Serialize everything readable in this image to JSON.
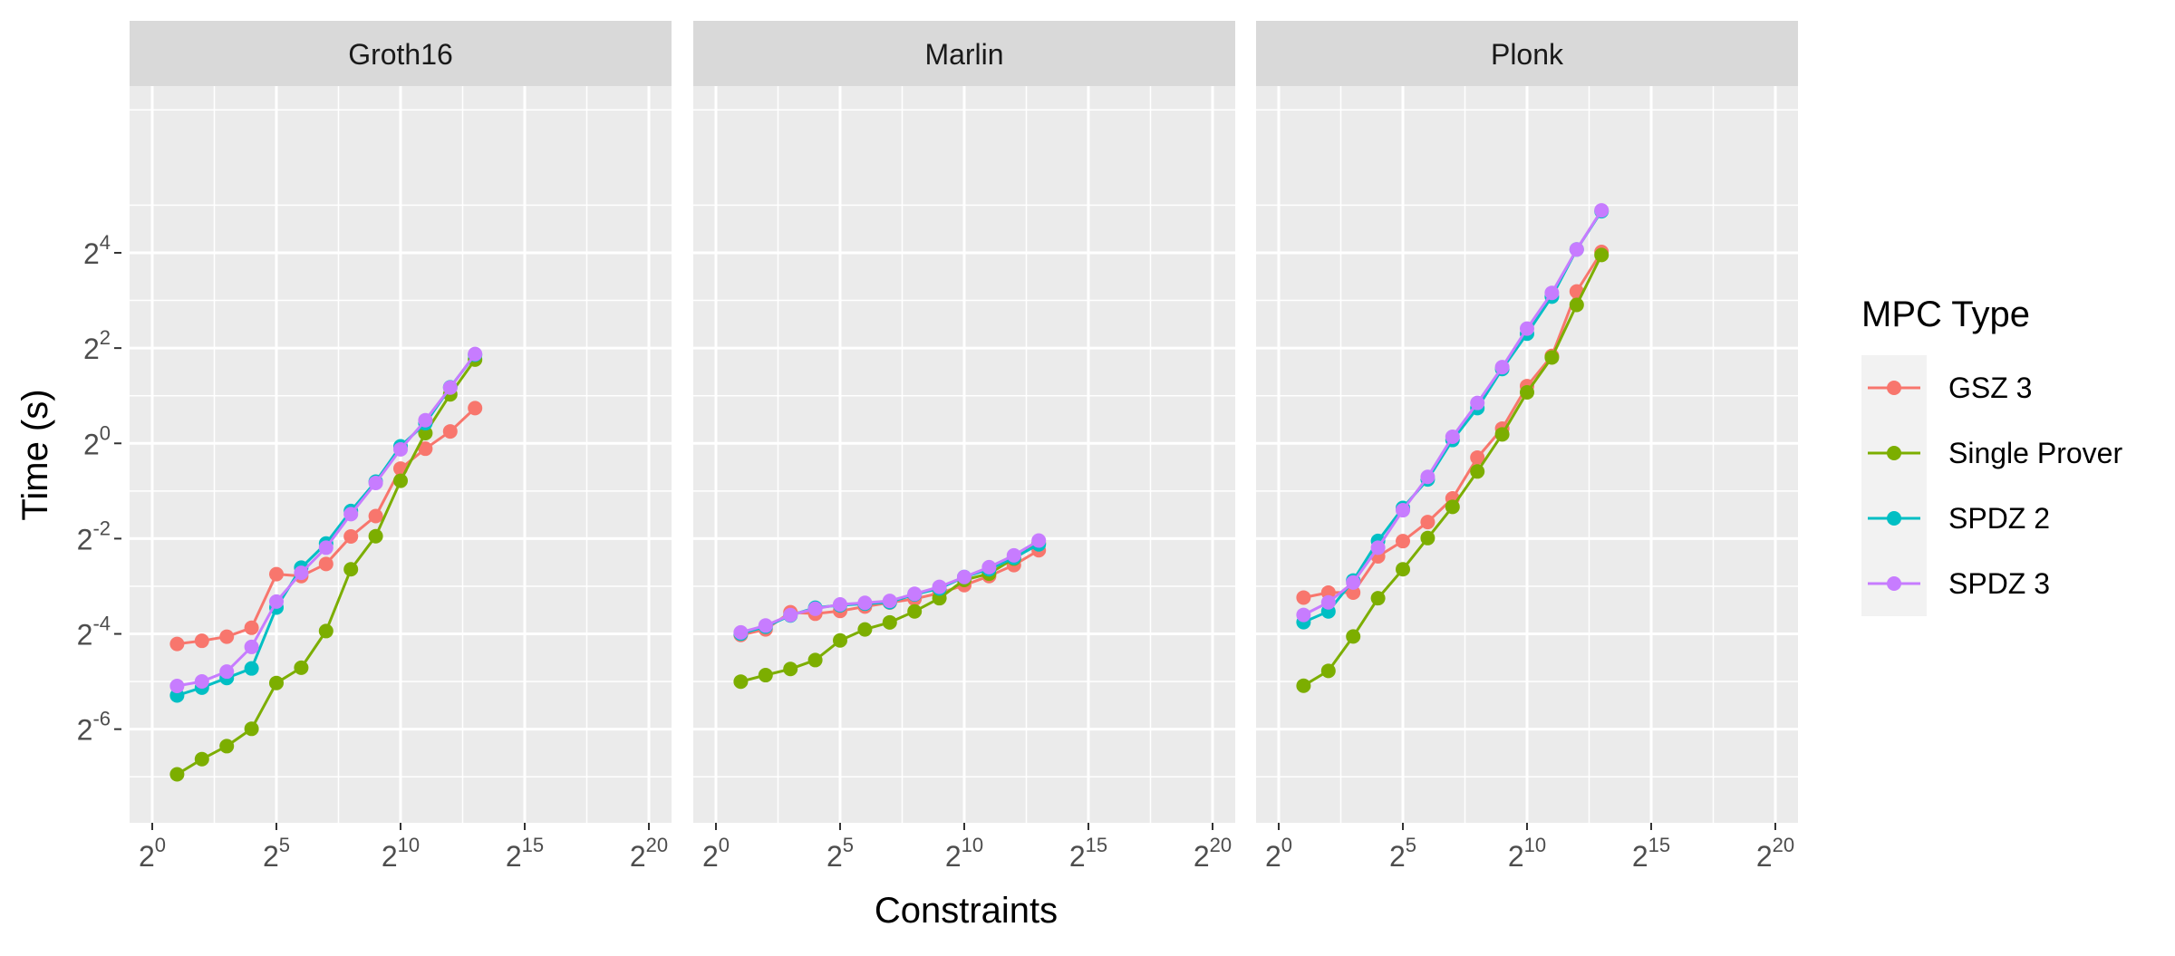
{
  "chart_data": {
    "type": "line",
    "xlabel": "Constraints",
    "ylabel": "Time (s)",
    "x_scale": "log2",
    "y_scale": "log2",
    "xlim": [
      1,
      1048576
    ],
    "ylim": [
      0.004,
      181.02
    ],
    "x_ticks": [
      1,
      32,
      1024,
      32768,
      1048576
    ],
    "y_ticks": [
      0.015625,
      0.0625,
      0.25,
      1,
      4,
      16
    ],
    "grid": true,
    "legend": {
      "title": "MPC Type",
      "position": "right",
      "entries": [
        {
          "name": "GSZ 3",
          "color": "#F8766D"
        },
        {
          "name": "Single Prover",
          "color": "#7CAE00"
        },
        {
          "name": "SPDZ 2",
          "color": "#00BFC4"
        },
        {
          "name": "SPDZ 3",
          "color": "#C77CFF"
        }
      ]
    },
    "panels": [
      {
        "title": "Groth16",
        "series": [
          {
            "name": "GSZ 3",
            "color": "#F8766D",
            "x": [
              2,
              4,
              8,
              16,
              32,
              64,
              128,
              256,
              512,
              1024,
              2048,
              4096,
              8192
            ],
            "y": [
              0.054,
              0.0565,
              0.06,
              0.0683,
              0.149,
              0.145,
              0.173,
              0.258,
              0.347,
              0.693,
              0.925,
              1.19,
              1.67
            ]
          },
          {
            "name": "Single Prover",
            "color": "#7CAE00",
            "x": [
              2,
              4,
              8,
              16,
              32,
              64,
              128,
              256,
              512,
              1024,
              2048,
              4096,
              8192
            ],
            "y": [
              0.0081,
              0.0101,
              0.0122,
              0.0157,
              0.0306,
              0.0382,
              0.0651,
              0.16,
              0.259,
              0.58,
              1.16,
              2.04,
              3.38
            ]
          },
          {
            "name": "SPDZ 2",
            "color": "#00BFC4",
            "x": [
              2,
              4,
              8,
              16,
              32,
              64,
              128,
              256,
              512,
              1024,
              2048,
              4096,
              8192
            ],
            "y": [
              0.0255,
              0.0286,
              0.0329,
              0.0378,
              0.0917,
              0.164,
              0.233,
              0.374,
              0.573,
              0.958,
              1.34,
              2.26,
              3.63
            ]
          },
          {
            "name": "SPDZ 3",
            "color": "#C77CFF",
            "x": [
              2,
              4,
              8,
              16,
              32,
              64,
              128,
              256,
              512,
              1024,
              2048,
              4096,
              8192
            ],
            "y": [
              0.0293,
              0.0313,
              0.0361,
              0.0517,
              0.1,
              0.152,
              0.219,
              0.357,
              0.562,
              0.917,
              1.4,
              2.25,
              3.67
            ]
          }
        ]
      },
      {
        "title": "Marlin",
        "series": [
          {
            "name": "GSZ 3",
            "color": "#F8766D",
            "x": [
              2,
              4,
              8,
              16,
              32,
              64,
              128,
              256,
              512,
              1024,
              2048,
              4096,
              8192
            ],
            "y": [
              0.0615,
              0.0667,
              0.0856,
              0.0838,
              0.0872,
              0.093,
              0.0985,
              0.104,
              0.113,
              0.127,
              0.145,
              0.17,
              0.211
            ]
          },
          {
            "name": "Single Prover",
            "color": "#7CAE00",
            "x": [
              2,
              4,
              8,
              16,
              32,
              64,
              128,
              256,
              512,
              1024,
              2048,
              4096,
              8192
            ],
            "y": [
              0.0312,
              0.0343,
              0.0375,
              0.0427,
              0.0568,
              0.0667,
              0.0739,
              0.0867,
              0.105,
              0.137,
              0.15,
              0.187,
              0.234
            ]
          },
          {
            "name": "SPDZ 2",
            "color": "#00BFC4",
            "x": [
              2,
              4,
              8,
              16,
              32,
              64,
              128,
              256,
              512,
              1024,
              2048,
              4096,
              8192
            ],
            "y": [
              0.0627,
              0.0694,
              0.0817,
              0.0915,
              0.0948,
              0.0969,
              0.0991,
              0.111,
              0.121,
              0.143,
              0.16,
              0.189,
              0.23
            ]
          },
          {
            "name": "SPDZ 3",
            "color": "#C77CFF",
            "x": [
              2,
              4,
              8,
              16,
              32,
              64,
              128,
              256,
              512,
              1024,
              2048,
              4096,
              8192
            ],
            "y": [
              0.0639,
              0.0706,
              0.0822,
              0.0901,
              0.096,
              0.0982,
              0.101,
              0.112,
              0.124,
              0.143,
              0.165,
              0.196,
              0.243
            ]
          }
        ]
      },
      {
        "title": "Plonk",
        "series": [
          {
            "name": "GSZ 3",
            "color": "#F8766D",
            "x": [
              2,
              4,
              8,
              16,
              32,
              64,
              128,
              256,
              512,
              1024,
              2048,
              4096,
              8192
            ],
            "y": [
              0.106,
              0.114,
              0.114,
              0.193,
              0.241,
              0.318,
              0.449,
              0.813,
              1.24,
              2.3,
              3.57,
              9.12,
              16.2
            ]
          },
          {
            "name": "Single Prover",
            "color": "#7CAE00",
            "x": [
              2,
              4,
              8,
              16,
              32,
              64,
              128,
              256,
              512,
              1024,
              2048,
              4096,
              8192
            ],
            "y": [
              0.0294,
              0.0365,
              0.0602,
              0.105,
              0.16,
              0.252,
              0.397,
              0.664,
              1.14,
              2.1,
              3.49,
              7.5,
              15.5
            ]
          },
          {
            "name": "SPDZ 2",
            "color": "#00BFC4",
            "x": [
              2,
              4,
              8,
              16,
              32,
              64,
              128,
              256,
              512,
              1024,
              2048,
              4096,
              8192
            ],
            "y": [
              0.0741,
              0.0867,
              0.136,
              0.242,
              0.391,
              0.591,
              1.05,
              1.67,
              2.95,
              4.93,
              8.46,
              16.8,
              29.3
            ]
          },
          {
            "name": "SPDZ 3",
            "color": "#C77CFF",
            "x": [
              2,
              4,
              8,
              16,
              32,
              64,
              128,
              256,
              512,
              1024,
              2048,
              4096,
              8192
            ],
            "y": [
              0.0824,
              0.0989,
              0.132,
              0.219,
              0.378,
              0.614,
              1.1,
              1.8,
              3.03,
              5.31,
              8.93,
              16.8,
              29.7
            ]
          }
        ]
      }
    ]
  }
}
